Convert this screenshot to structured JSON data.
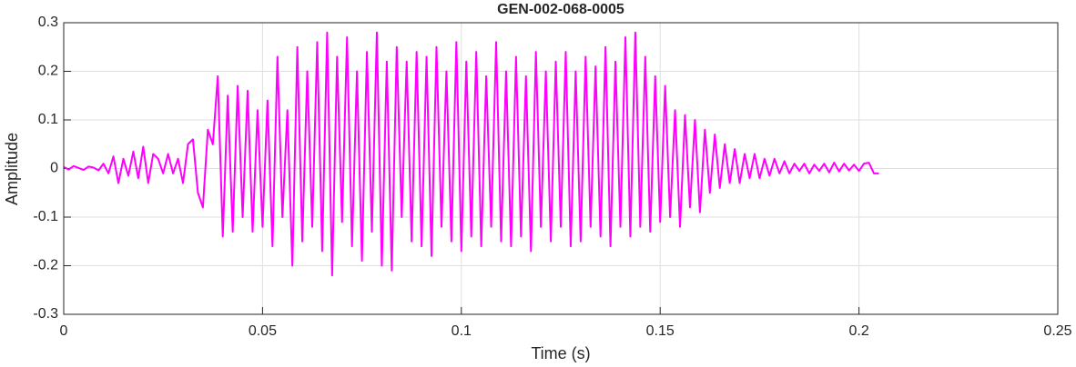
{
  "chart_data": {
    "type": "line",
    "title": "GEN-002-068-0005",
    "xlabel": "Time (s)",
    "ylabel": "Amplitude",
    "xlim": [
      0,
      0.25
    ],
    "xticks": [
      0,
      0.05,
      0.1,
      0.15,
      0.2,
      0.25
    ],
    "ylim": [
      -0.3,
      0.3
    ],
    "yticks": [
      -0.3,
      -0.2,
      -0.1,
      0,
      0.1,
      0.2,
      0.3
    ],
    "grid": true,
    "x": [
      0,
      0.00125,
      0.0025,
      0.00375,
      0.005,
      0.00625,
      0.0075,
      0.00875,
      0.01,
      0.01125,
      0.0125,
      0.01375,
      0.015,
      0.01625,
      0.0175,
      0.01875,
      0.02,
      0.02125,
      0.0225,
      0.02375,
      0.025,
      0.02625,
      0.0275,
      0.02875,
      0.03,
      0.03125,
      0.0325,
      0.03375,
      0.035,
      0.03625,
      0.0375,
      0.03875,
      0.04,
      0.04125,
      0.0425,
      0.04375,
      0.045,
      0.04625,
      0.0475,
      0.04875,
      0.05,
      0.05125,
      0.0525,
      0.05375,
      0.055,
      0.05625,
      0.0575,
      0.05875,
      0.06,
      0.06125,
      0.0625,
      0.06375,
      0.065,
      0.06625,
      0.0675,
      0.06875,
      0.07,
      0.07125,
      0.0725,
      0.07375,
      0.075,
      0.07625,
      0.0775,
      0.07875,
      0.08,
      0.08125,
      0.0825,
      0.08375,
      0.085,
      0.08625,
      0.0875,
      0.08875,
      0.09,
      0.09125,
      0.0925,
      0.09375,
      0.095,
      0.09625,
      0.0975,
      0.09875,
      0.1,
      0.10125,
      0.1025,
      0.10375,
      0.105,
      0.10625,
      0.1075,
      0.10875,
      0.11,
      0.11125,
      0.1125,
      0.11375,
      0.115,
      0.11625,
      0.1175,
      0.11875,
      0.12,
      0.12125,
      0.1225,
      0.12375,
      0.125,
      0.12625,
      0.1275,
      0.12875,
      0.13,
      0.13125,
      0.1325,
      0.13375,
      0.135,
      0.13625,
      0.1375,
      0.13875,
      0.14,
      0.14125,
      0.1425,
      0.14375,
      0.145,
      0.14625,
      0.1475,
      0.14875,
      0.15,
      0.15125,
      0.1525,
      0.15375,
      0.155,
      0.15625,
      0.1575,
      0.15875,
      0.16,
      0.16125,
      0.1625,
      0.16375,
      0.165,
      0.16625,
      0.1675,
      0.16875,
      0.17,
      0.17125,
      0.1725,
      0.17375,
      0.175,
      0.17625,
      0.1775,
      0.17875,
      0.18,
      0.18125,
      0.1825,
      0.18375,
      0.185,
      0.18625,
      0.1875,
      0.18875,
      0.19,
      0.19125,
      0.1925,
      0.19375,
      0.195,
      0.19625,
      0.1975,
      0.19875,
      0.2,
      0.20125,
      0.2025,
      0.20375,
      0.205
    ],
    "series": [
      {
        "name": "Amplitude",
        "color": "#ff00ff",
        "values": [
          0.003,
          -0.002,
          0.005,
          0.001,
          -0.003,
          0.004,
          0.002,
          -0.004,
          0.01,
          -0.01,
          0.025,
          -0.03,
          0.02,
          -0.015,
          0.035,
          -0.02,
          0.045,
          -0.03,
          0.03,
          0.02,
          -0.01,
          0.03,
          -0.01,
          0.02,
          -0.03,
          0.05,
          0.06,
          -0.05,
          -0.08,
          0.08,
          0.05,
          0.19,
          -0.14,
          0.15,
          -0.13,
          0.17,
          -0.1,
          0.16,
          -0.13,
          0.12,
          -0.12,
          0.14,
          -0.16,
          0.23,
          -0.1,
          0.12,
          -0.2,
          0.25,
          -0.15,
          0.2,
          -0.12,
          0.26,
          -0.17,
          0.28,
          -0.22,
          0.23,
          -0.11,
          0.27,
          -0.16,
          0.2,
          -0.19,
          0.24,
          -0.13,
          0.28,
          -0.2,
          0.22,
          -0.21,
          0.25,
          -0.1,
          0.22,
          -0.15,
          0.24,
          -0.16,
          0.23,
          -0.18,
          0.25,
          -0.12,
          0.2,
          -0.15,
          0.26,
          -0.17,
          0.22,
          -0.14,
          0.24,
          -0.16,
          0.19,
          -0.12,
          0.26,
          -0.15,
          0.2,
          -0.16,
          0.23,
          -0.14,
          0.19,
          -0.17,
          0.24,
          -0.12,
          0.2,
          -0.15,
          0.22,
          -0.12,
          0.24,
          -0.16,
          0.2,
          -0.15,
          0.23,
          -0.12,
          0.21,
          -0.14,
          0.25,
          -0.16,
          0.22,
          -0.12,
          0.27,
          -0.14,
          0.28,
          -0.12,
          0.23,
          -0.13,
          0.19,
          -0.11,
          0.17,
          -0.1,
          0.12,
          -0.12,
          0.11,
          -0.08,
          0.1,
          -0.09,
          0.08,
          -0.05,
          0.07,
          -0.04,
          0.05,
          -0.03,
          0.04,
          -0.03,
          0.03,
          -0.02,
          0.03,
          -0.02,
          0.02,
          -0.015,
          0.02,
          -0.01,
          0.015,
          -0.01,
          0.01,
          -0.005,
          0.01,
          -0.01,
          0.008,
          -0.005,
          0.01,
          -0.008,
          0.012,
          -0.006,
          0.01,
          -0.004,
          0.008,
          -0.005,
          0.01,
          0.012,
          -0.01,
          -0.01
        ]
      }
    ]
  }
}
